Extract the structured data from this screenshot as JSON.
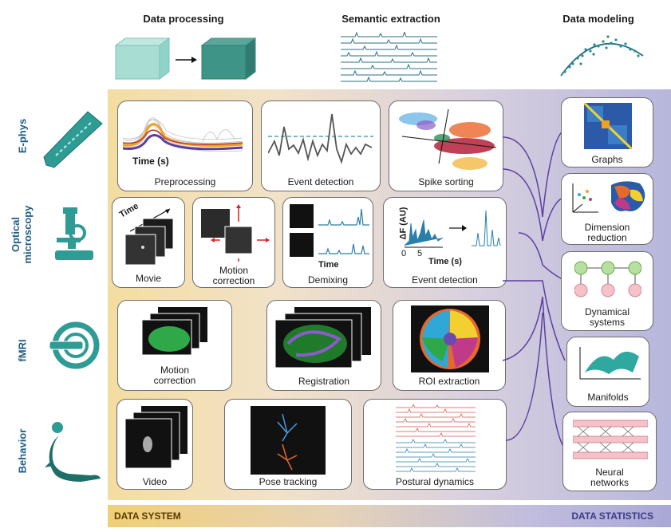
{
  "headers": {
    "processing": "Data processing",
    "semantic": "Semantic extraction",
    "modeling": "Data modeling"
  },
  "rows": {
    "ephys": "E-phys",
    "optical_1": "Optical",
    "optical_2": "microscopy",
    "fmri": "fMRI",
    "behavior": "Behavior"
  },
  "cards": {
    "preprocessing": {
      "caption": "Preprocessing",
      "axis": "Time (s)"
    },
    "event_detection_ephys": {
      "caption": "Event detection"
    },
    "spike_sorting": {
      "caption": "Spike sorting"
    },
    "movie": {
      "caption": "Movie",
      "axis": "Time"
    },
    "motion_correction_optical": {
      "caption_1": "Motion",
      "caption_2": "correction"
    },
    "demixing": {
      "caption": "Demixing",
      "axis": "Time"
    },
    "event_detection_optical": {
      "caption": "Event detection",
      "ylabel": "ΔF (AU)",
      "tick0": "0",
      "tick5": "5",
      "xlabel": "Time (s)"
    },
    "motion_correction_fmri": {
      "caption_1": "Motion",
      "caption_2": "correction"
    },
    "registration": {
      "caption": "Registration"
    },
    "roi_extraction": {
      "caption": "ROI extraction"
    },
    "video": {
      "caption": "Video"
    },
    "pose_tracking": {
      "caption": "Pose tracking"
    },
    "postural_dynamics": {
      "caption": "Postural dynamics"
    }
  },
  "models": {
    "graphs": {
      "caption": "Graphs"
    },
    "dimension_reduction": {
      "caption_1": "Dimension",
      "caption_2": "reduction"
    },
    "dynamical_systems": {
      "caption_1": "Dynamical",
      "caption_2": "systems"
    },
    "manifolds": {
      "caption": "Manifolds"
    },
    "neural_networks": {
      "caption_1": "Neural",
      "caption_2": "networks"
    }
  },
  "bands": {
    "left": "DATA SYSTEM",
    "right": "DATA STATISTICS"
  },
  "colors": {
    "teal": "#2f8f87",
    "navy": "#1f5f86",
    "purple": "#5b3fa0",
    "orange": "#f0a020"
  }
}
